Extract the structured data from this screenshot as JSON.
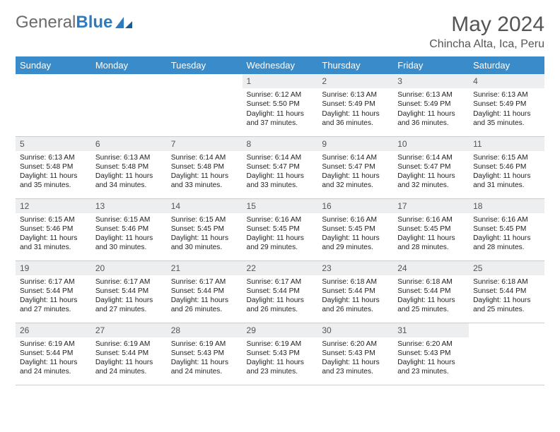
{
  "logo": {
    "text1": "General",
    "text2": "Blue"
  },
  "title": "May 2024",
  "location": "Chincha Alta, Ica, Peru",
  "colors": {
    "header_bg": "#3a8bc9",
    "header_fg": "#ffffff",
    "daynum_bg": "#eceef0",
    "text": "#222222",
    "logo_gray": "#6b6b6b",
    "logo_blue": "#2e7cbf"
  },
  "weekdays": [
    "Sunday",
    "Monday",
    "Tuesday",
    "Wednesday",
    "Thursday",
    "Friday",
    "Saturday"
  ],
  "weeks": [
    [
      null,
      null,
      null,
      {
        "n": "1",
        "sr": "6:12 AM",
        "ss": "5:50 PM",
        "dl": "11 hours and 37 minutes."
      },
      {
        "n": "2",
        "sr": "6:13 AM",
        "ss": "5:49 PM",
        "dl": "11 hours and 36 minutes."
      },
      {
        "n": "3",
        "sr": "6:13 AM",
        "ss": "5:49 PM",
        "dl": "11 hours and 36 minutes."
      },
      {
        "n": "4",
        "sr": "6:13 AM",
        "ss": "5:49 PM",
        "dl": "11 hours and 35 minutes."
      }
    ],
    [
      {
        "n": "5",
        "sr": "6:13 AM",
        "ss": "5:48 PM",
        "dl": "11 hours and 35 minutes."
      },
      {
        "n": "6",
        "sr": "6:13 AM",
        "ss": "5:48 PM",
        "dl": "11 hours and 34 minutes."
      },
      {
        "n": "7",
        "sr": "6:14 AM",
        "ss": "5:48 PM",
        "dl": "11 hours and 33 minutes."
      },
      {
        "n": "8",
        "sr": "6:14 AM",
        "ss": "5:47 PM",
        "dl": "11 hours and 33 minutes."
      },
      {
        "n": "9",
        "sr": "6:14 AM",
        "ss": "5:47 PM",
        "dl": "11 hours and 32 minutes."
      },
      {
        "n": "10",
        "sr": "6:14 AM",
        "ss": "5:47 PM",
        "dl": "11 hours and 32 minutes."
      },
      {
        "n": "11",
        "sr": "6:15 AM",
        "ss": "5:46 PM",
        "dl": "11 hours and 31 minutes."
      }
    ],
    [
      {
        "n": "12",
        "sr": "6:15 AM",
        "ss": "5:46 PM",
        "dl": "11 hours and 31 minutes."
      },
      {
        "n": "13",
        "sr": "6:15 AM",
        "ss": "5:46 PM",
        "dl": "11 hours and 30 minutes."
      },
      {
        "n": "14",
        "sr": "6:15 AM",
        "ss": "5:45 PM",
        "dl": "11 hours and 30 minutes."
      },
      {
        "n": "15",
        "sr": "6:16 AM",
        "ss": "5:45 PM",
        "dl": "11 hours and 29 minutes."
      },
      {
        "n": "16",
        "sr": "6:16 AM",
        "ss": "5:45 PM",
        "dl": "11 hours and 29 minutes."
      },
      {
        "n": "17",
        "sr": "6:16 AM",
        "ss": "5:45 PM",
        "dl": "11 hours and 28 minutes."
      },
      {
        "n": "18",
        "sr": "6:16 AM",
        "ss": "5:45 PM",
        "dl": "11 hours and 28 minutes."
      }
    ],
    [
      {
        "n": "19",
        "sr": "6:17 AM",
        "ss": "5:44 PM",
        "dl": "11 hours and 27 minutes."
      },
      {
        "n": "20",
        "sr": "6:17 AM",
        "ss": "5:44 PM",
        "dl": "11 hours and 27 minutes."
      },
      {
        "n": "21",
        "sr": "6:17 AM",
        "ss": "5:44 PM",
        "dl": "11 hours and 26 minutes."
      },
      {
        "n": "22",
        "sr": "6:17 AM",
        "ss": "5:44 PM",
        "dl": "11 hours and 26 minutes."
      },
      {
        "n": "23",
        "sr": "6:18 AM",
        "ss": "5:44 PM",
        "dl": "11 hours and 26 minutes."
      },
      {
        "n": "24",
        "sr": "6:18 AM",
        "ss": "5:44 PM",
        "dl": "11 hours and 25 minutes."
      },
      {
        "n": "25",
        "sr": "6:18 AM",
        "ss": "5:44 PM",
        "dl": "11 hours and 25 minutes."
      }
    ],
    [
      {
        "n": "26",
        "sr": "6:19 AM",
        "ss": "5:44 PM",
        "dl": "11 hours and 24 minutes."
      },
      {
        "n": "27",
        "sr": "6:19 AM",
        "ss": "5:44 PM",
        "dl": "11 hours and 24 minutes."
      },
      {
        "n": "28",
        "sr": "6:19 AM",
        "ss": "5:43 PM",
        "dl": "11 hours and 24 minutes."
      },
      {
        "n": "29",
        "sr": "6:19 AM",
        "ss": "5:43 PM",
        "dl": "11 hours and 23 minutes."
      },
      {
        "n": "30",
        "sr": "6:20 AM",
        "ss": "5:43 PM",
        "dl": "11 hours and 23 minutes."
      },
      {
        "n": "31",
        "sr": "6:20 AM",
        "ss": "5:43 PM",
        "dl": "11 hours and 23 minutes."
      },
      null
    ]
  ],
  "labels": {
    "sunrise": "Sunrise: ",
    "sunset": "Sunset: ",
    "daylight": "Daylight: "
  }
}
